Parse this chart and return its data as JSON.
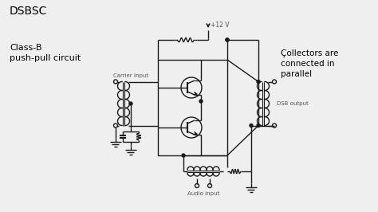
{
  "title": "DSBSC",
  "subtitle": "Class-B\npush-pull circuit",
  "annotation": "Çollectors are\nconnected in\nparallel",
  "label_carrier": "Carrier input",
  "label_dsb": "DSB output",
  "label_audio": "Audio input",
  "label_vcc": "+12 V",
  "bg_color": "#efefef",
  "line_color": "#1a1a1a",
  "text_color": "#555555",
  "figsize": [
    4.74,
    2.66
  ],
  "dpi": 100
}
